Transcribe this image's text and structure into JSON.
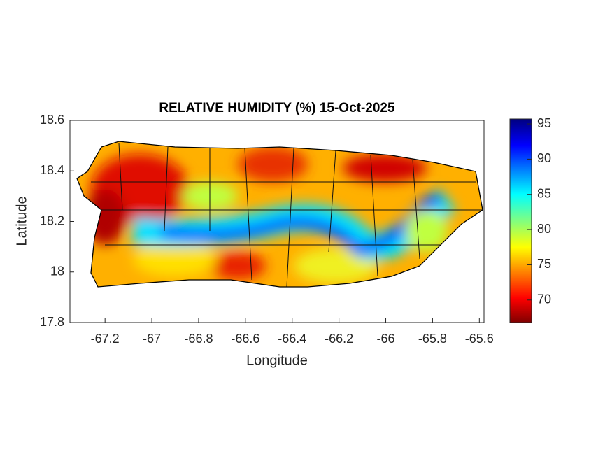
{
  "chart_data": {
    "type": "map",
    "title": "RELATIVE HUMIDITY (%) 15-Oct-2025",
    "x_label": "Longitude",
    "y_label": "Latitude",
    "xlim": [
      -67.35,
      -65.58
    ],
    "ylim": [
      17.8,
      18.6
    ],
    "xticks": [
      -67.2,
      -67,
      -66.8,
      -66.6,
      -66.4,
      -66.2,
      -66,
      -65.8,
      -65.6
    ],
    "yticks": [
      17.8,
      18,
      18.2,
      18.4,
      18.6
    ],
    "colorbar": {
      "clim": [
        66.8,
        95.7
      ],
      "ticks": [
        70,
        75,
        80,
        85,
        90,
        95
      ]
    }
  }
}
